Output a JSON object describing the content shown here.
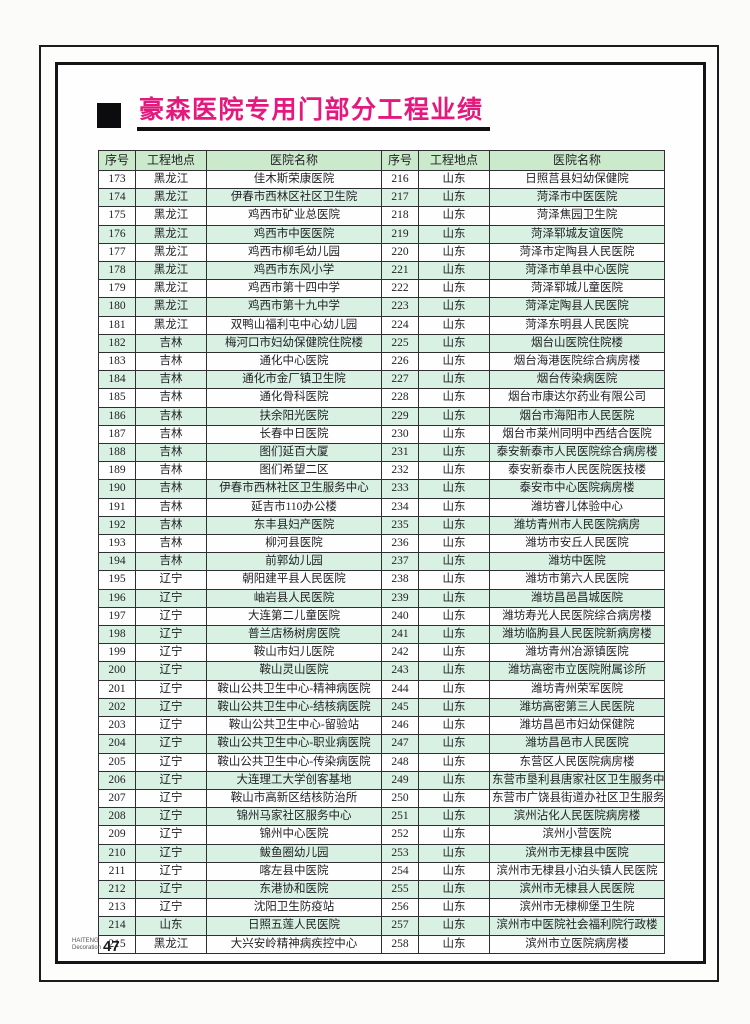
{
  "page": {
    "title": "豪森医院专用门部分工程业绩",
    "footer": {
      "brand_line1": "HAITENG",
      "brand_line2": "Decoration",
      "page_number": "47"
    }
  },
  "colors": {
    "title_text": "#e3197e",
    "header_bg": "#cbe9cb",
    "stripe_bg": "#d9f1e3",
    "table_border": "#2e2e33",
    "frame_border": "#151518"
  },
  "table": {
    "headers": [
      "序号",
      "工程地点",
      "医院名称",
      "序号",
      "工程地点",
      "医院名称"
    ],
    "rows": [
      [
        "173",
        "黑龙江",
        "佳木斯荣康医院",
        "216",
        "山东",
        "日照莒县妇幼保健院"
      ],
      [
        "174",
        "黑龙江",
        "伊春市西林区社区卫生院",
        "217",
        "山东",
        "菏泽市中医医院"
      ],
      [
        "175",
        "黑龙江",
        "鸡西市矿业总医院",
        "218",
        "山东",
        "菏泽焦园卫生院"
      ],
      [
        "176",
        "黑龙江",
        "鸡西市中医医院",
        "219",
        "山东",
        "菏泽郓城友谊医院"
      ],
      [
        "177",
        "黑龙江",
        "鸡西市柳毛幼儿园",
        "220",
        "山东",
        "菏泽市定陶县人民医院"
      ],
      [
        "178",
        "黑龙江",
        "鸡西市东风小学",
        "221",
        "山东",
        "菏泽市单县中心医院"
      ],
      [
        "179",
        "黑龙江",
        "鸡西市第十四中学",
        "222",
        "山东",
        "菏泽郓城儿童医院"
      ],
      [
        "180",
        "黑龙江",
        "鸡西市第十九中学",
        "223",
        "山东",
        "菏泽定陶县人民医院"
      ],
      [
        "181",
        "黑龙江",
        "双鸭山福利屯中心幼儿园",
        "224",
        "山东",
        "菏泽东明县人民医院"
      ],
      [
        "182",
        "吉林",
        "梅河口市妇幼保健院住院楼",
        "225",
        "山东",
        "烟台山医院住院楼"
      ],
      [
        "183",
        "吉林",
        "通化中心医院",
        "226",
        "山东",
        "烟台海港医院综合病房楼"
      ],
      [
        "184",
        "吉林",
        "通化市金厂镇卫生院",
        "227",
        "山东",
        "烟台传染病医院"
      ],
      [
        "185",
        "吉林",
        "通化骨科医院",
        "228",
        "山东",
        "烟台市康达尔药业有限公司"
      ],
      [
        "186",
        "吉林",
        "扶余阳光医院",
        "229",
        "山东",
        "烟台市海阳市人民医院"
      ],
      [
        "187",
        "吉林",
        "长春中日医院",
        "230",
        "山东",
        "烟台市莱州同明中西结合医院"
      ],
      [
        "188",
        "吉林",
        "图们延百大厦",
        "231",
        "山东",
        "泰安新泰市人民医院综合病房楼"
      ],
      [
        "189",
        "吉林",
        "图们希望二区",
        "232",
        "山东",
        "泰安新泰市人民医院医技楼"
      ],
      [
        "190",
        "吉林",
        "伊春市西林社区卫生服务中心",
        "233",
        "山东",
        "泰安市中心医院病房楼"
      ],
      [
        "191",
        "吉林",
        "延吉市110办公楼",
        "234",
        "山东",
        "潍坊睿儿体验中心"
      ],
      [
        "192",
        "吉林",
        "东丰县妇产医院",
        "235",
        "山东",
        "潍坊青州市人民医院病房"
      ],
      [
        "193",
        "吉林",
        "柳河县医院",
        "236",
        "山东",
        "潍坊市安丘人民医院"
      ],
      [
        "194",
        "吉林",
        "前郭幼儿园",
        "237",
        "山东",
        "潍坊中医院"
      ],
      [
        "195",
        "辽宁",
        "朝阳建平县人民医院",
        "238",
        "山东",
        "潍坊市第六人民医院"
      ],
      [
        "196",
        "辽宁",
        "岫岩县人民医院",
        "239",
        "山东",
        "潍坊昌邑昌城医院"
      ],
      [
        "197",
        "辽宁",
        "大连第二儿童医院",
        "240",
        "山东",
        "潍坊寿光人民医院综合病房楼"
      ],
      [
        "198",
        "辽宁",
        "普兰店杨树房医院",
        "241",
        "山东",
        "潍坊临朐县人民医院新病房楼"
      ],
      [
        "199",
        "辽宁",
        "鞍山市妇儿医院",
        "242",
        "山东",
        "潍坊青州冶源镇医院"
      ],
      [
        "200",
        "辽宁",
        "鞍山灵山医院",
        "243",
        "山东",
        "潍坊高密市立医院附属诊所"
      ],
      [
        "201",
        "辽宁",
        "鞍山公共卫生中心-精神病医院",
        "244",
        "山东",
        "潍坊青州荣军医院"
      ],
      [
        "202",
        "辽宁",
        "鞍山公共卫生中心-结核病医院",
        "245",
        "山东",
        "潍坊高密第三人民医院"
      ],
      [
        "203",
        "辽宁",
        "鞍山公共卫生中心-留验站",
        "246",
        "山东",
        "潍坊昌邑市妇幼保健院"
      ],
      [
        "204",
        "辽宁",
        "鞍山公共卫生中心-职业病医院",
        "247",
        "山东",
        "潍坊昌邑市人民医院"
      ],
      [
        "205",
        "辽宁",
        "鞍山公共卫生中心-传染病医院",
        "248",
        "山东",
        "东营区人民医院病房楼"
      ],
      [
        "206",
        "辽宁",
        "大连理工大学创客基地",
        "249",
        "山东",
        "东营市垦利县唐家社区卫生服务中心"
      ],
      [
        "207",
        "辽宁",
        "鞍山市高新区结核防治所",
        "250",
        "山东",
        "东营市广饶县街道办社区卫生服务中心"
      ],
      [
        "208",
        "辽宁",
        "锦州马家社区服务中心",
        "251",
        "山东",
        "滨州沾化人民医院病房楼"
      ],
      [
        "209",
        "辽宁",
        "锦州中心医院",
        "252",
        "山东",
        "滨州小营医院"
      ],
      [
        "210",
        "辽宁",
        "鲅鱼圈幼儿园",
        "253",
        "山东",
        "滨州市无棣县中医院"
      ],
      [
        "211",
        "辽宁",
        "喀左县中医院",
        "254",
        "山东",
        "滨州市无棣县小泊头镇人民医院"
      ],
      [
        "212",
        "辽宁",
        "东港协和医院",
        "255",
        "山东",
        "滨州市无棣县人民医院"
      ],
      [
        "213",
        "辽宁",
        "沈阳卫生防疫站",
        "256",
        "山东",
        "滨州市无棣柳堡卫生院"
      ],
      [
        "214",
        "山东",
        "日照五莲人民医院",
        "257",
        "山东",
        "滨州市中医院社会福利院行政楼"
      ],
      [
        "215",
        "黑龙江",
        "大兴安岭精神病疾控中心",
        "258",
        "山东",
        "滨州市立医院病房楼"
      ]
    ]
  }
}
